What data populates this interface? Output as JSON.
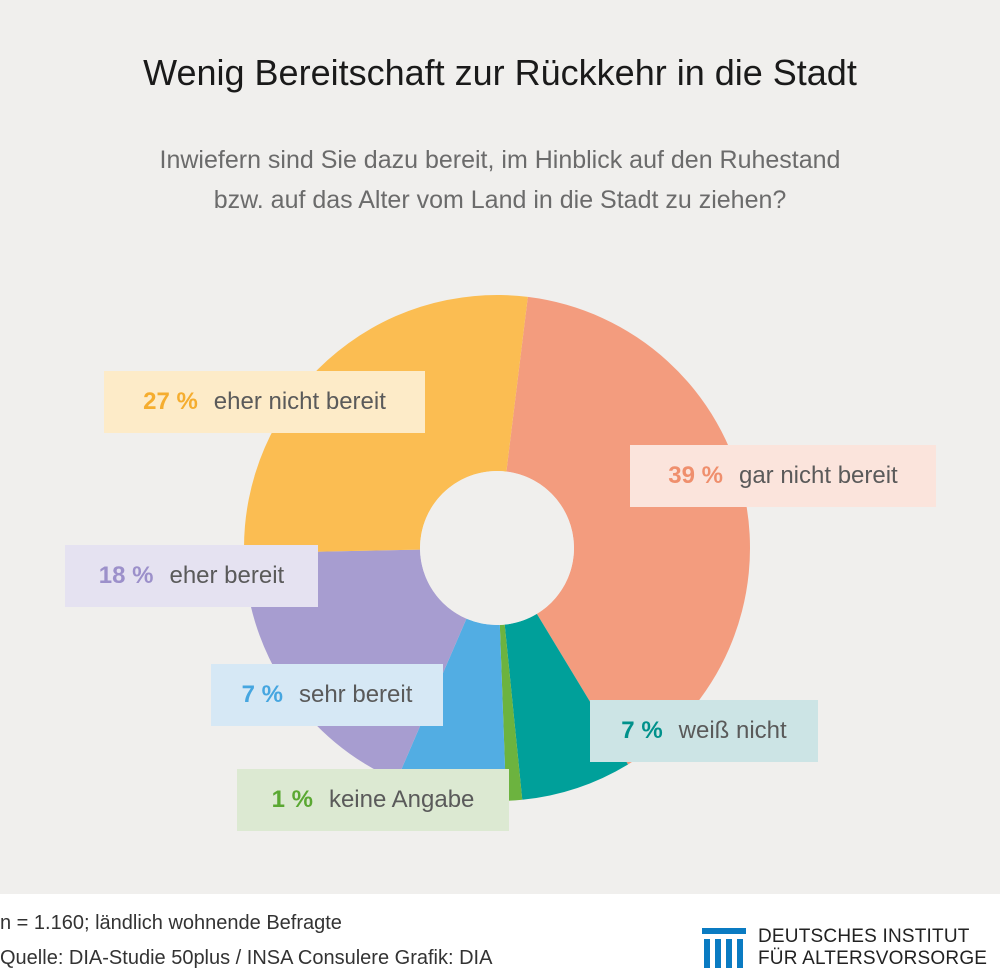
{
  "title": "Wenig Bereitschaft zur Rückkehr in die Stadt",
  "subtitle_line1": "Inwiefern sind Sie dazu bereit, im Hinblick auf den Ruhestand",
  "subtitle_line2": "bzw. auf das Alter vom Land in die Stadt zu ziehen?",
  "chart_data": {
    "type": "pie",
    "donut": true,
    "title": "Wenig Bereitschaft zur Rückkehr in die Stadt",
    "slices": [
      {
        "label": "gar nicht bereit",
        "value": 39,
        "pct_text": "39 %",
        "color": "#f39c7e",
        "box_color": "#fbe4dc",
        "pct_color": "#ef8f6d"
      },
      {
        "label": "weiß nicht",
        "value": 7,
        "pct_text": "7 %",
        "color": "#00a09a",
        "box_color": "#cce4e5",
        "pct_color": "#00918b"
      },
      {
        "label": "keine Angabe",
        "value": 1,
        "pct_text": "1 %",
        "color": "#6cb33f",
        "box_color": "#dce9d2",
        "pct_color": "#5aa832"
      },
      {
        "label": "sehr bereit",
        "value": 7,
        "pct_text": "7 %",
        "color": "#52ade3",
        "box_color": "#d6e8f5",
        "pct_color": "#46a6e0"
      },
      {
        "label": "eher bereit",
        "value": 18,
        "pct_text": "18 %",
        "color": "#a79dd0",
        "box_color": "#e5e2f1",
        "pct_color": "#9c90ca"
      },
      {
        "label": "eher nicht bereit",
        "value": 27,
        "pct_text": "27 %",
        "color": "#fbbd52",
        "box_color": "#fdebc8",
        "pct_color": "#f5ad2f"
      }
    ]
  },
  "footer": {
    "note1": "n = 1.160; ländlich wohnende Befragte",
    "note2": "Quelle: DIA-Studie 50plus / INSA Consulere  Grafik: DIA",
    "logo_line1": "DEUTSCHES INSTITUT",
    "logo_line2": "FÜR ALTERSVORSORGE",
    "logo_color": "#0a7bc2"
  }
}
